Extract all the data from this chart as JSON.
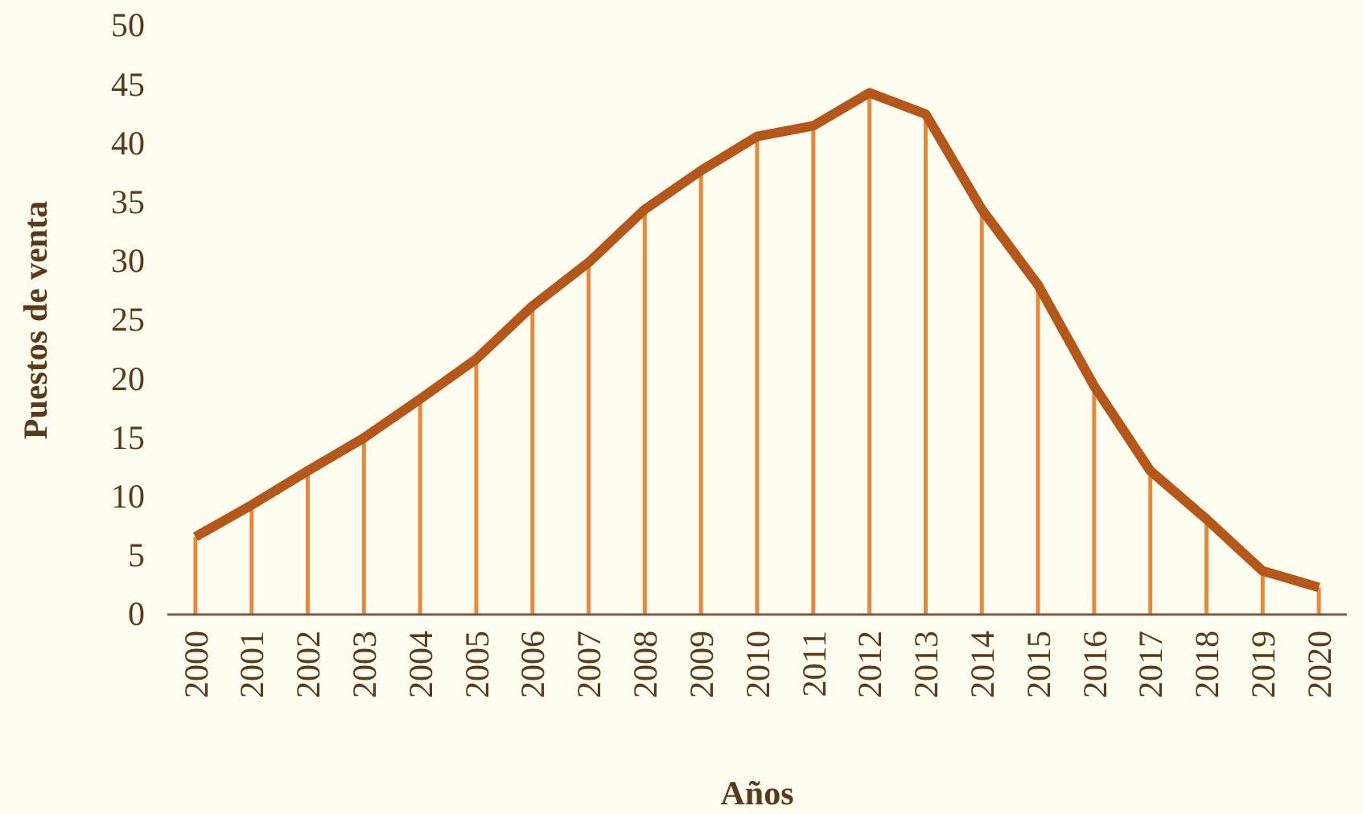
{
  "chart_data": {
    "type": "line",
    "xlabel": "Años",
    "ylabel": "Puestos de venta",
    "categories": [
      "2000",
      "2001",
      "2002",
      "2003",
      "2004",
      "2005",
      "2006",
      "2007",
      "2008",
      "2009",
      "2010",
      "2011",
      "2012",
      "2013",
      "2014",
      "2015",
      "2016",
      "2017",
      "2018",
      "2019",
      "2020"
    ],
    "series": [
      {
        "type": "bar",
        "color": "#e8893a",
        "values": [
          6.6,
          9.3,
          12.2,
          15.0,
          18.3,
          21.7,
          26.2,
          29.9,
          34.4,
          37.7,
          40.6,
          41.5,
          44.3,
          42.5,
          34.4,
          28.0,
          19.4,
          12.2,
          8.1,
          3.7,
          2.3
        ]
      },
      {
        "color": "#b5561b",
        "values": [
          6.6,
          9.3,
          12.2,
          15.0,
          18.3,
          21.7,
          26.2,
          29.9,
          34.4,
          37.7,
          40.6,
          41.5,
          44.3,
          42.5,
          34.4,
          28.0,
          19.4,
          12.2,
          8.1,
          3.7,
          2.3
        ]
      }
    ],
    "ylim": [
      0,
      50
    ],
    "yticks": [
      0,
      5,
      10,
      15,
      20,
      25,
      30,
      35,
      40,
      45,
      50
    ],
    "grid": false
  }
}
